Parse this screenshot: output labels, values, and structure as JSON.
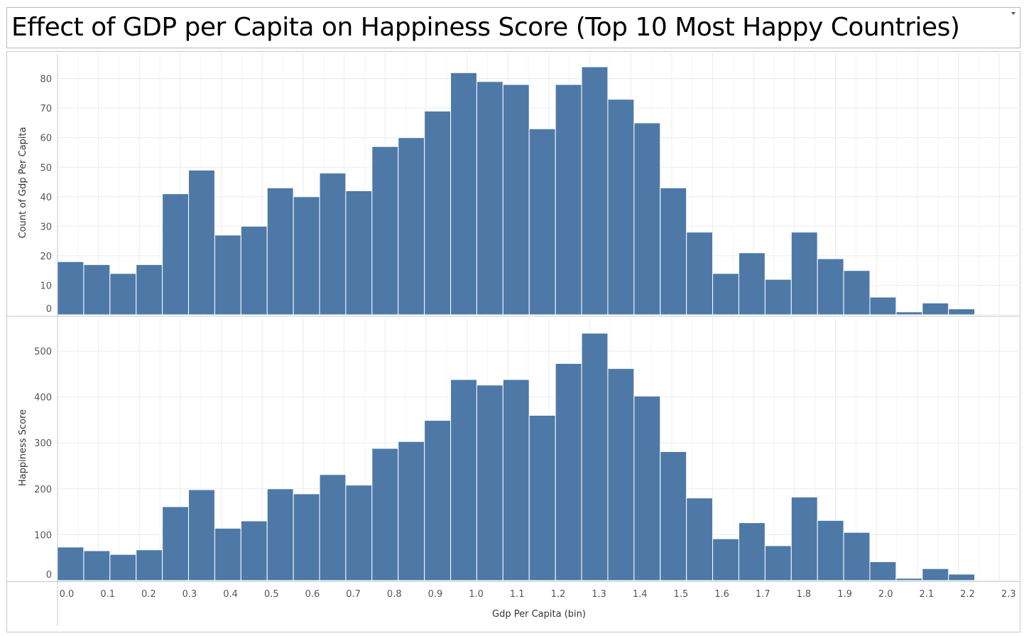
{
  "title": "Effect of GDP per Capita on Happiness Score (Top 10 Most Happy Countries)",
  "colors": {
    "bar": "#4e79a7",
    "grid": "#ececec",
    "axis": "#c8c8c8"
  },
  "chart_data": [
    {
      "type": "bar",
      "name": "count-panel",
      "ylabel": "Count of Gdp Per Capita",
      "xlabel": "Gdp Per Capita (bin)",
      "bin_width": 0.064,
      "bin_starts": [
        0.0,
        0.064,
        0.128,
        0.192,
        0.256,
        0.32,
        0.384,
        0.448,
        0.512,
        0.576,
        0.64,
        0.704,
        0.768,
        0.832,
        0.896,
        0.96,
        1.024,
        1.088,
        1.152,
        1.216,
        1.28,
        1.344,
        1.408,
        1.472,
        1.536,
        1.6,
        1.664,
        1.728,
        1.792,
        1.856,
        1.92,
        1.984,
        2.048,
        2.112,
        2.176
      ],
      "values": [
        18,
        17,
        14,
        17,
        41,
        49,
        27,
        30,
        43,
        40,
        48,
        42,
        57,
        60,
        69,
        82,
        79,
        78,
        63,
        78,
        84,
        73,
        65,
        43,
        28,
        14,
        21,
        12,
        28,
        19,
        15,
        6,
        1,
        4,
        2
      ],
      "ylim": [
        0,
        84
      ],
      "yticks": [
        0,
        10,
        20,
        30,
        40,
        50,
        60,
        70,
        80
      ],
      "grid": true
    },
    {
      "type": "bar",
      "name": "happiness-panel",
      "ylabel": "Happiness Score",
      "xlabel": "Gdp Per Capita (bin)",
      "bin_width": 0.064,
      "bin_starts": [
        0.0,
        0.064,
        0.128,
        0.192,
        0.256,
        0.32,
        0.384,
        0.448,
        0.512,
        0.576,
        0.64,
        0.704,
        0.768,
        0.832,
        0.896,
        0.96,
        1.024,
        1.088,
        1.152,
        1.216,
        1.28,
        1.344,
        1.408,
        1.472,
        1.536,
        1.6,
        1.664,
        1.728,
        1.792,
        1.856,
        1.92,
        1.984,
        2.048,
        2.112,
        2.176
      ],
      "values": [
        73,
        65,
        57,
        67,
        161,
        198,
        114,
        130,
        200,
        189,
        231,
        208,
        288,
        303,
        349,
        438,
        426,
        438,
        360,
        473,
        539,
        462,
        402,
        281,
        180,
        91,
        126,
        76,
        182,
        131,
        105,
        41,
        5,
        26,
        14
      ],
      "ylim": [
        0,
        545
      ],
      "yticks": [
        0,
        100,
        200,
        300,
        400,
        500
      ],
      "grid": true
    }
  ],
  "xaxis": {
    "title": "Gdp Per Capita (bin)",
    "ticks": [
      "0.0",
      "0.1",
      "0.2",
      "0.3",
      "0.4",
      "0.5",
      "0.6",
      "0.7",
      "0.8",
      "0.9",
      "1.0",
      "1.1",
      "1.2",
      "1.3",
      "1.4",
      "1.5",
      "1.6",
      "1.7",
      "1.8",
      "1.9",
      "2.0",
      "2.1",
      "2.2",
      "2.3"
    ],
    "range": [
      0.0,
      2.3
    ]
  }
}
